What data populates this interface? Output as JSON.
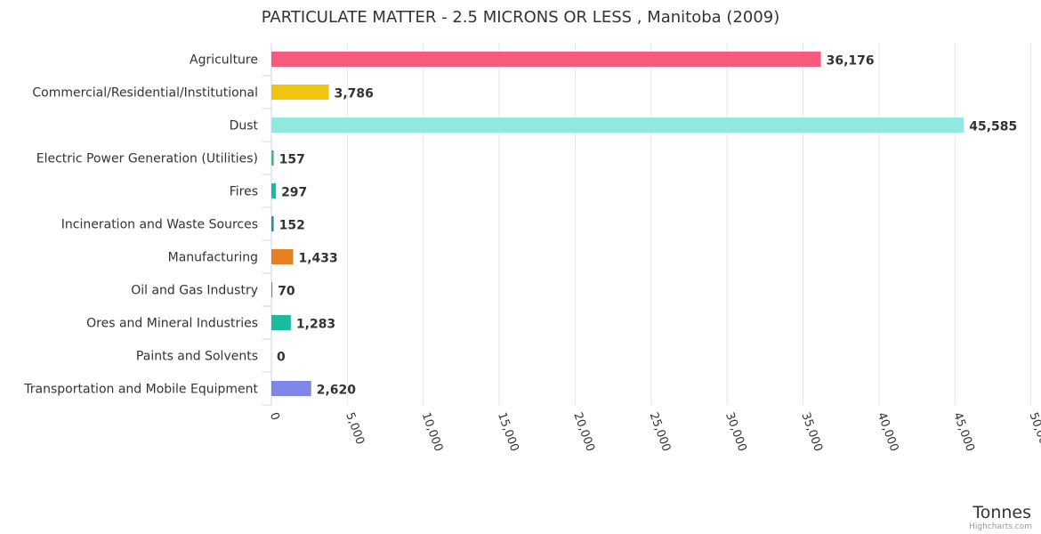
{
  "chart_data": {
    "type": "bar",
    "orientation": "horizontal",
    "title": "PARTICULATE MATTER - 2.5 MICRONS OR LESS , Manitoba (2009)",
    "xlabel": "Tonnes",
    "ylabel": "",
    "xlim": [
      0,
      50000
    ],
    "xticks": [
      "0",
      "5,000",
      "10,000",
      "15,000",
      "20,000",
      "25,000",
      "30,000",
      "35,000",
      "40,000",
      "45,000",
      "50,000"
    ],
    "tick_values": [
      0,
      5000,
      10000,
      15000,
      20000,
      25000,
      30000,
      35000,
      40000,
      45000,
      50000
    ],
    "grid": true,
    "legend": "none",
    "categories": [
      "Agriculture",
      "Commercial/Residential/Institutional",
      "Dust",
      "Electric Power Generation (Utilities)",
      "Fires",
      "Incineration and Waste Sources",
      "Manufacturing",
      "Oil and Gas Industry",
      "Ores and Mineral Industries",
      "Paints and Solvents",
      "Transportation and Mobile Equipment"
    ],
    "values": [
      36176,
      3786,
      45585,
      157,
      297,
      152,
      1433,
      70,
      1283,
      0,
      2620
    ],
    "data_labels": [
      "36,176",
      "3,786",
      "45,585",
      "157",
      "297",
      "152",
      "1,433",
      "70",
      "1,283",
      "0",
      "2,620"
    ],
    "colors": [
      "#f45b7f",
      "#f1c40f",
      "#91e8e1",
      "#2ecc71",
      "#1abc9c",
      "#2a8f9d",
      "#e67e22",
      "#7f8c8d",
      "#1abc9c",
      "#8e44ad",
      "#8085e9"
    ],
    "credit": "Highcharts.com"
  }
}
